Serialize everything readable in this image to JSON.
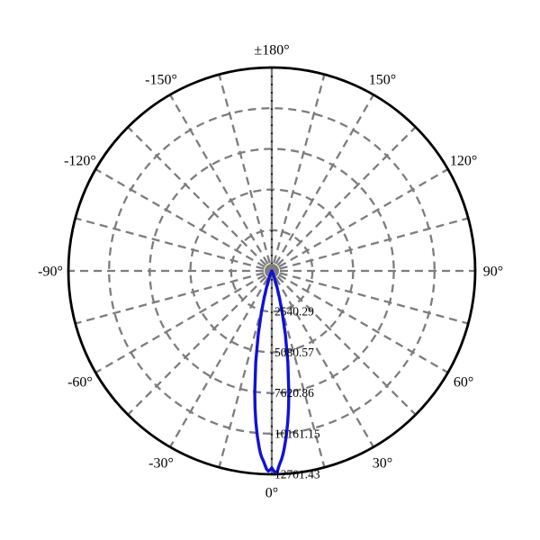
{
  "figure": {
    "background": "#ffffff",
    "description": "polar far-field intensity radiation pattern"
  },
  "chart_data": {
    "type": "line",
    "subtype": "polar",
    "title": "",
    "orientation": {
      "zero_deg": "bottom",
      "plus90_deg": "right",
      "plus180_deg": "top"
    },
    "angular_ticks": [
      {
        "deg": 180,
        "label": "±180°"
      },
      {
        "deg": -150,
        "label": "-150°"
      },
      {
        "deg": -120,
        "label": "-120°"
      },
      {
        "deg": -90,
        "label": "-90°"
      },
      {
        "deg": -60,
        "label": "-60°"
      },
      {
        "deg": -30,
        "label": "-30°"
      },
      {
        "deg": 0,
        "label": "0°"
      },
      {
        "deg": 30,
        "label": "30°"
      },
      {
        "deg": 60,
        "label": "60°"
      },
      {
        "deg": 90,
        "label": "90°"
      },
      {
        "deg": 120,
        "label": "120°"
      },
      {
        "deg": 150,
        "label": "150°"
      }
    ],
    "radial_ticks": [
      {
        "value": 2540.29,
        "label": "2540.29"
      },
      {
        "value": 5080.57,
        "label": "5080.57"
      },
      {
        "value": 7620.86,
        "label": "7620.86"
      },
      {
        "value": 10161.15,
        "label": "10161.15"
      },
      {
        "value": 12701.43,
        "label": "12701.43"
      }
    ],
    "radial_max": 12701.43,
    "grid": {
      "spoke_step_deg": 15,
      "line_style": "dashed",
      "grid_color": "#7d7d7d",
      "outer_circle_color": "#000000",
      "axis_color": "#7d7d7d",
      "axis_minor_tick_color": "#000000",
      "hub_color": "#7d7d7d"
    },
    "legend": null,
    "series": [
      {
        "name": "far-field-intensity-lobe",
        "color": "#1212d6",
        "points": [
          [
            -180,
            0
          ],
          [
            -150,
            0
          ],
          [
            -120,
            0
          ],
          [
            -90,
            0
          ],
          [
            -60,
            0
          ],
          [
            -45,
            0
          ],
          [
            -36,
            0
          ],
          [
            -33,
            4
          ],
          [
            -30,
            14
          ],
          [
            -28,
            28
          ],
          [
            -26,
            60
          ],
          [
            -24,
            140
          ],
          [
            -22,
            290
          ],
          [
            -20,
            550
          ],
          [
            -18,
            1000
          ],
          [
            -16,
            1700
          ],
          [
            -14,
            2720
          ],
          [
            -12,
            4090
          ],
          [
            -10,
            5770
          ],
          [
            -8,
            7640
          ],
          [
            -7,
            8600
          ],
          [
            -6,
            9510
          ],
          [
            -5,
            10360
          ],
          [
            -4,
            11120
          ],
          [
            -3.5,
            11450
          ],
          [
            -3,
            11700
          ],
          [
            -2.5,
            11890
          ],
          [
            -2,
            12140
          ],
          [
            -1.5,
            12390
          ],
          [
            -1,
            12500
          ],
          [
            -0.5,
            12430
          ],
          [
            0,
            12300
          ],
          [
            0.5,
            12480
          ],
          [
            1,
            12580
          ],
          [
            1.5,
            12600
          ],
          [
            2,
            12250
          ],
          [
            2.5,
            11990
          ],
          [
            3,
            11760
          ],
          [
            3.5,
            11470
          ],
          [
            4,
            11120
          ],
          [
            5,
            10370
          ],
          [
            6,
            9510
          ],
          [
            7,
            8600
          ],
          [
            8,
            7640
          ],
          [
            10,
            5770
          ],
          [
            12,
            4090
          ],
          [
            14,
            2720
          ],
          [
            16,
            1700
          ],
          [
            18,
            1000
          ],
          [
            20,
            550
          ],
          [
            22,
            290
          ],
          [
            24,
            140
          ],
          [
            26,
            60
          ],
          [
            28,
            28
          ],
          [
            30,
            14
          ],
          [
            33,
            4
          ],
          [
            36,
            0
          ],
          [
            45,
            0
          ],
          [
            60,
            0
          ],
          [
            90,
            0
          ],
          [
            120,
            0
          ],
          [
            150,
            0
          ],
          [
            180,
            0
          ]
        ]
      }
    ]
  }
}
